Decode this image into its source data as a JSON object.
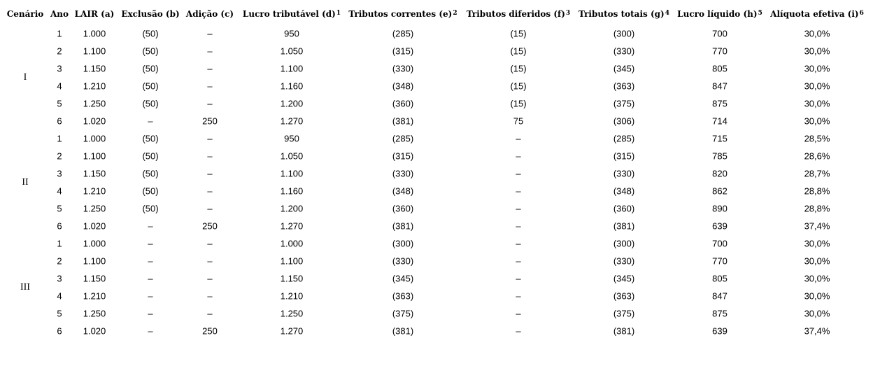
{
  "table": {
    "header": [
      {
        "text": "Cenário"
      },
      {
        "text": "Ano"
      },
      {
        "text": "LAIR (a)"
      },
      {
        "text": "Exclusão (b)"
      },
      {
        "text": "Adição (c)"
      },
      {
        "text": "Lucro tributável (d)",
        "sup": "1"
      },
      {
        "text": "Tributos correntes (e)",
        "sup": "2"
      },
      {
        "text": "Tributos diferidos (f)",
        "sup": "3"
      },
      {
        "text": "Tributos totais (g)",
        "sup": "4"
      },
      {
        "text": "Lucro líquido (h)",
        "sup": "5"
      },
      {
        "text": "Alíquota efetiva (i)",
        "sup": "6"
      }
    ],
    "scenarios": [
      {
        "label": "I",
        "rows": [
          [
            "1",
            "1.000",
            "(50)",
            "–",
            "950",
            "(285)",
            "(15)",
            "(300)",
            "700",
            "30,0%"
          ],
          [
            "2",
            "1.100",
            "(50)",
            "–",
            "1.050",
            "(315)",
            "(15)",
            "(330)",
            "770",
            "30,0%"
          ],
          [
            "3",
            "1.150",
            "(50)",
            "–",
            "1.100",
            "(330)",
            "(15)",
            "(345)",
            "805",
            "30,0%"
          ],
          [
            "4",
            "1.210",
            "(50)",
            "–",
            "1.160",
            "(348)",
            "(15)",
            "(363)",
            "847",
            "30,0%"
          ],
          [
            "5",
            "1.250",
            "(50)",
            "–",
            "1.200",
            "(360)",
            "(15)",
            "(375)",
            "875",
            "30,0%"
          ],
          [
            "6",
            "1.020",
            "–",
            "250",
            "1.270",
            "(381)",
            "75",
            "(306)",
            "714",
            "30,0%"
          ]
        ]
      },
      {
        "label": "II",
        "rows": [
          [
            "1",
            "1.000",
            "(50)",
            "–",
            "950",
            "(285)",
            "–",
            "(285)",
            "715",
            "28,5%"
          ],
          [
            "2",
            "1.100",
            "(50)",
            "–",
            "1.050",
            "(315)",
            "–",
            "(315)",
            "785",
            "28,6%"
          ],
          [
            "3",
            "1.150",
            "(50)",
            "–",
            "1.100",
            "(330)",
            "–",
            "(330)",
            "820",
            "28,7%"
          ],
          [
            "4",
            "1.210",
            "(50)",
            "–",
            "1.160",
            "(348)",
            "–",
            "(348)",
            "862",
            "28,8%"
          ],
          [
            "5",
            "1.250",
            "(50)",
            "–",
            "1.200",
            "(360)",
            "–",
            "(360)",
            "890",
            "28,8%"
          ],
          [
            "6",
            "1.020",
            "–",
            "250",
            "1.270",
            "(381)",
            "–",
            "(381)",
            "639",
            "37,4%"
          ]
        ]
      },
      {
        "label": "III",
        "rows": [
          [
            "1",
            "1.000",
            "–",
            "–",
            "1.000",
            "(300)",
            "–",
            "(300)",
            "700",
            "30,0%"
          ],
          [
            "2",
            "1.100",
            "–",
            "–",
            "1.100",
            "(330)",
            "–",
            "(330)",
            "770",
            "30,0%"
          ],
          [
            "3",
            "1.150",
            "–",
            "–",
            "1.150",
            "(345)",
            "–",
            "(345)",
            "805",
            "30,0%"
          ],
          [
            "4",
            "1.210",
            "–",
            "–",
            "1.210",
            "(363)",
            "–",
            "(363)",
            "847",
            "30,0%"
          ],
          [
            "5",
            "1.250",
            "–",
            "–",
            "1.250",
            "(375)",
            "–",
            "(375)",
            "875",
            "30,0%"
          ],
          [
            "6",
            "1.020",
            "–",
            "250",
            "1.270",
            "(381)",
            "–",
            "(381)",
            "639",
            "37,4%"
          ]
        ]
      }
    ]
  }
}
